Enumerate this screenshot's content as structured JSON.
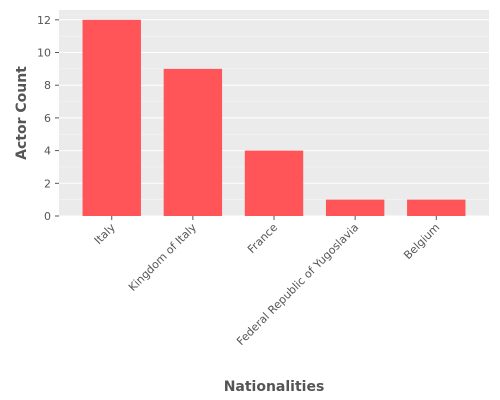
{
  "colors": {
    "bar": "#ff5559",
    "plot_background": "#ebebeb",
    "grid": "#ffffff",
    "tick": "#555555",
    "label": "#555555"
  },
  "chart_data": {
    "type": "bar",
    "title": "",
    "xlabel": "Nationalities",
    "ylabel": "Actor Count",
    "categories": [
      "Italy",
      "Kingdom of Italy",
      "France",
      "Federal Republic of Yugoslavia",
      "Belgium"
    ],
    "values": [
      12,
      9,
      4,
      1,
      1
    ],
    "ylim": [
      0,
      12.6
    ],
    "yticks": [
      0,
      2,
      4,
      6,
      8,
      10,
      12
    ],
    "grid": true,
    "x_tick_rotation": "45 degrees",
    "legend": "none"
  }
}
